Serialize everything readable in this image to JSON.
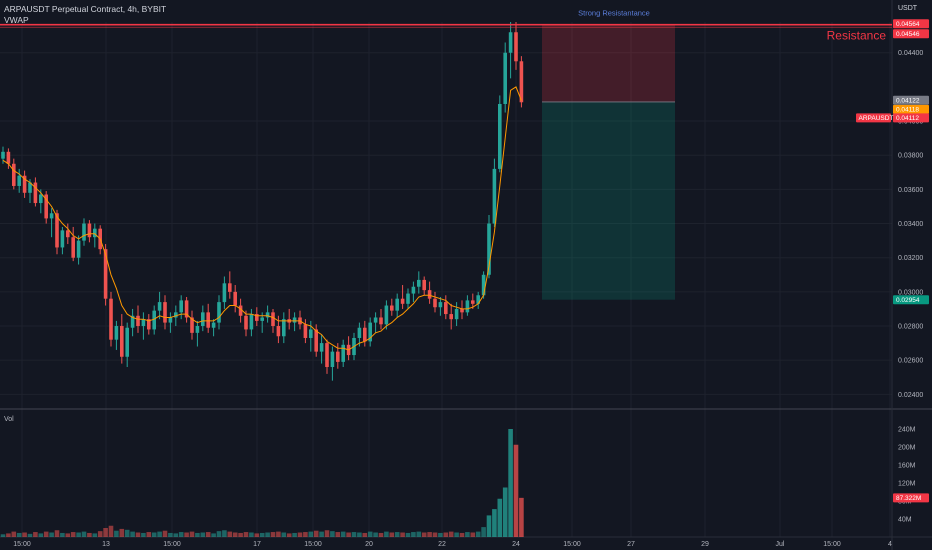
{
  "header": {
    "symbol_line": "ARPAUSDT Perpetual Contract, 4h, BYBIT",
    "indicator": "VWAP"
  },
  "colors": {
    "background": "#131722",
    "up": "#26a69a",
    "down": "#ef5350",
    "vwap": "#ff9800",
    "resistance": "#f23645",
    "grid": "#1e222d",
    "text": "#b2b5be"
  },
  "chart_data": {
    "type": "candlestick",
    "title": "ARPAUSDT Perpetual Contract, 4h, BYBIT",
    "indicator": "VWAP",
    "price_axis": {
      "unit": "USDT",
      "ticks": [
        "0.04400",
        "0.04000",
        "0.03800",
        "0.03600",
        "0.03400",
        "0.03200",
        "0.03000",
        "0.02800",
        "0.02600",
        "0.02400"
      ],
      "range": [
        0.0232,
        0.0458
      ]
    },
    "time_axis": {
      "ticks": [
        "15:00",
        "13",
        "15:00",
        "17",
        "15:00",
        "20",
        "22",
        "24",
        "15:00",
        "27",
        "29",
        "Jul",
        "15:00",
        "4"
      ]
    },
    "price_labels": [
      {
        "text": "0.04564",
        "value": 0.04564,
        "color": "#f23645"
      },
      {
        "text": "0.04546",
        "value": 0.04546,
        "color": "#f23645"
      },
      {
        "text": "0.04122",
        "value": 0.04122,
        "color": "#787b86"
      },
      {
        "text": "0.04118",
        "value": 0.04118,
        "color": "#ff9800"
      },
      {
        "text": "0.04112",
        "value": 0.04112,
        "color": "#f23645"
      },
      {
        "text": "0.02954",
        "value": 0.02954,
        "color": "#089981"
      }
    ],
    "symbol_tag": "ARPAUSDT",
    "resistance": {
      "label": "Resistance",
      "value": 0.04564
    },
    "annotation": "Strong Resistantance",
    "position": {
      "entry": 0.04112,
      "stop": 0.0456,
      "target": 0.02954
    },
    "volume": {
      "label": "Vol",
      "ticks": [
        "240M",
        "200M",
        "160M",
        "120M",
        "80M",
        "40M"
      ],
      "range": [
        0,
        260
      ],
      "last_label": "87.322M"
    },
    "candles": [
      [
        0.0378,
        0.0385,
        0.0375,
        0.0382,
        6
      ],
      [
        0.0382,
        0.0384,
        0.0372,
        0.0375,
        8
      ],
      [
        0.0375,
        0.0378,
        0.036,
        0.0362,
        12
      ],
      [
        0.0362,
        0.0372,
        0.0358,
        0.0368,
        9
      ],
      [
        0.0368,
        0.0371,
        0.0355,
        0.0358,
        10
      ],
      [
        0.0358,
        0.0366,
        0.0352,
        0.0364,
        7
      ],
      [
        0.0364,
        0.0367,
        0.035,
        0.0352,
        11
      ],
      [
        0.0352,
        0.036,
        0.0346,
        0.0357,
        8
      ],
      [
        0.0357,
        0.0359,
        0.034,
        0.0343,
        12
      ],
      [
        0.0343,
        0.0349,
        0.0332,
        0.0346,
        10
      ],
      [
        0.0346,
        0.0348,
        0.0322,
        0.0326,
        15
      ],
      [
        0.0326,
        0.0338,
        0.0322,
        0.0336,
        9
      ],
      [
        0.0336,
        0.034,
        0.0328,
        0.0332,
        8
      ],
      [
        0.0332,
        0.0338,
        0.0318,
        0.032,
        11
      ],
      [
        0.032,
        0.0333,
        0.0316,
        0.033,
        10
      ],
      [
        0.033,
        0.0343,
        0.0327,
        0.034,
        12
      ],
      [
        0.034,
        0.0342,
        0.0329,
        0.0332,
        9
      ],
      [
        0.0332,
        0.034,
        0.0326,
        0.0337,
        8
      ],
      [
        0.0337,
        0.0339,
        0.0322,
        0.0325,
        13
      ],
      [
        0.0325,
        0.0328,
        0.0292,
        0.0296,
        20
      ],
      [
        0.0296,
        0.03,
        0.0268,
        0.0272,
        25
      ],
      [
        0.0272,
        0.0283,
        0.0266,
        0.028,
        14
      ],
      [
        0.028,
        0.0287,
        0.0258,
        0.0262,
        18
      ],
      [
        0.0262,
        0.0282,
        0.0256,
        0.0279,
        16
      ],
      [
        0.0279,
        0.029,
        0.0274,
        0.0286,
        12
      ],
      [
        0.0286,
        0.0292,
        0.0276,
        0.028,
        10
      ],
      [
        0.028,
        0.0288,
        0.0272,
        0.0284,
        9
      ],
      [
        0.0284,
        0.0287,
        0.0275,
        0.0278,
        11
      ],
      [
        0.0278,
        0.0292,
        0.0275,
        0.0289,
        10
      ],
      [
        0.0289,
        0.03,
        0.0284,
        0.0294,
        12
      ],
      [
        0.0294,
        0.0298,
        0.0278,
        0.0282,
        14
      ],
      [
        0.0282,
        0.0288,
        0.0276,
        0.0285,
        9
      ],
      [
        0.0285,
        0.0292,
        0.028,
        0.0288,
        8
      ],
      [
        0.0288,
        0.0298,
        0.0284,
        0.0295,
        11
      ],
      [
        0.0295,
        0.0297,
        0.0282,
        0.0285,
        10
      ],
      [
        0.0285,
        0.0289,
        0.0272,
        0.0276,
        12
      ],
      [
        0.0276,
        0.0283,
        0.0268,
        0.028,
        9
      ],
      [
        0.028,
        0.0292,
        0.0277,
        0.0288,
        10
      ],
      [
        0.0288,
        0.0293,
        0.0276,
        0.0279,
        11
      ],
      [
        0.0279,
        0.0284,
        0.0274,
        0.0282,
        8
      ],
      [
        0.0282,
        0.0298,
        0.0278,
        0.0294,
        13
      ],
      [
        0.0294,
        0.0309,
        0.029,
        0.0305,
        15
      ],
      [
        0.0305,
        0.0312,
        0.0296,
        0.03,
        12
      ],
      [
        0.03,
        0.0304,
        0.0288,
        0.0292,
        10
      ],
      [
        0.0292,
        0.0296,
        0.0282,
        0.0286,
        9
      ],
      [
        0.0286,
        0.0289,
        0.0274,
        0.0278,
        11
      ],
      [
        0.0278,
        0.029,
        0.0274,
        0.0287,
        10
      ],
      [
        0.0287,
        0.0291,
        0.028,
        0.0283,
        8
      ],
      [
        0.0283,
        0.0288,
        0.0276,
        0.0285,
        9
      ],
      [
        0.0285,
        0.0292,
        0.0282,
        0.0288,
        10
      ],
      [
        0.0288,
        0.029,
        0.0276,
        0.028,
        11
      ],
      [
        0.028,
        0.0286,
        0.027,
        0.0274,
        12
      ],
      [
        0.0274,
        0.0288,
        0.027,
        0.0284,
        10
      ],
      [
        0.0284,
        0.029,
        0.0278,
        0.0282,
        8
      ],
      [
        0.0282,
        0.0288,
        0.0277,
        0.0285,
        9
      ],
      [
        0.0285,
        0.0289,
        0.0278,
        0.0281,
        10
      ],
      [
        0.0281,
        0.0284,
        0.027,
        0.0273,
        11
      ],
      [
        0.0273,
        0.0283,
        0.0265,
        0.0278,
        12
      ],
      [
        0.0278,
        0.0281,
        0.0262,
        0.0265,
        14
      ],
      [
        0.0265,
        0.0275,
        0.0258,
        0.027,
        12
      ],
      [
        0.027,
        0.0272,
        0.0252,
        0.0256,
        15
      ],
      [
        0.0256,
        0.0268,
        0.0248,
        0.0265,
        13
      ],
      [
        0.0265,
        0.027,
        0.0255,
        0.0259,
        11
      ],
      [
        0.0259,
        0.0272,
        0.0256,
        0.0269,
        12
      ],
      [
        0.0269,
        0.0274,
        0.026,
        0.0263,
        10
      ],
      [
        0.0263,
        0.0276,
        0.026,
        0.0273,
        11
      ],
      [
        0.0273,
        0.0282,
        0.0268,
        0.0279,
        10
      ],
      [
        0.0279,
        0.0283,
        0.0268,
        0.0271,
        9
      ],
      [
        0.0271,
        0.0285,
        0.0268,
        0.0282,
        12
      ],
      [
        0.0282,
        0.0288,
        0.0276,
        0.0285,
        10
      ],
      [
        0.0285,
        0.029,
        0.0278,
        0.0281,
        9
      ],
      [
        0.0281,
        0.0295,
        0.0278,
        0.0292,
        12
      ],
      [
        0.0292,
        0.0296,
        0.0286,
        0.0289,
        10
      ],
      [
        0.0289,
        0.0299,
        0.0285,
        0.0296,
        11
      ],
      [
        0.0296,
        0.0304,
        0.029,
        0.0293,
        10
      ],
      [
        0.0293,
        0.0302,
        0.029,
        0.0299,
        9
      ],
      [
        0.0299,
        0.0306,
        0.0294,
        0.0303,
        11
      ],
      [
        0.0303,
        0.0312,
        0.0299,
        0.0307,
        12
      ],
      [
        0.0307,
        0.0309,
        0.0298,
        0.0301,
        10
      ],
      [
        0.0301,
        0.0306,
        0.0293,
        0.0296,
        11
      ],
      [
        0.0296,
        0.03,
        0.0288,
        0.0291,
        10
      ],
      [
        0.0291,
        0.0297,
        0.0286,
        0.0294,
        9
      ],
      [
        0.0294,
        0.0298,
        0.0284,
        0.0287,
        10
      ],
      [
        0.0287,
        0.0293,
        0.0278,
        0.0284,
        12
      ],
      [
        0.0284,
        0.0294,
        0.028,
        0.029,
        10
      ],
      [
        0.029,
        0.0295,
        0.0284,
        0.0288,
        9
      ],
      [
        0.0288,
        0.0298,
        0.0286,
        0.0295,
        11
      ],
      [
        0.0295,
        0.0299,
        0.029,
        0.0293,
        10
      ],
      [
        0.0293,
        0.03,
        0.029,
        0.0298,
        12
      ],
      [
        0.0298,
        0.0312,
        0.0296,
        0.031,
        22
      ],
      [
        0.031,
        0.0345,
        0.0308,
        0.034,
        48
      ],
      [
        0.034,
        0.0378,
        0.0338,
        0.0372,
        62
      ],
      [
        0.0372,
        0.0415,
        0.037,
        0.041,
        85
      ],
      [
        0.041,
        0.0446,
        0.0405,
        0.044,
        110
      ],
      [
        0.044,
        0.0458,
        0.0425,
        0.0452,
        240
      ],
      [
        0.0452,
        0.0458,
        0.043,
        0.0435,
        205
      ],
      [
        0.0435,
        0.0438,
        0.0408,
        0.0411,
        87
      ]
    ],
    "vwap": [
      0.0377,
      0.0375,
      0.0371,
      0.0369,
      0.0366,
      0.0364,
      0.0361,
      0.0358,
      0.0354,
      0.035,
      0.0344,
      0.034,
      0.0337,
      0.0333,
      0.0331,
      0.0333,
      0.0334,
      0.0334,
      0.0331,
      0.0322,
      0.031,
      0.0302,
      0.0292,
      0.0287,
      0.0285,
      0.0284,
      0.0284,
      0.0283,
      0.0284,
      0.0286,
      0.0285,
      0.0285,
      0.0286,
      0.0287,
      0.0287,
      0.0284,
      0.0282,
      0.0283,
      0.0283,
      0.0283,
      0.0285,
      0.0289,
      0.0292,
      0.0292,
      0.029,
      0.0287,
      0.0287,
      0.0286,
      0.0286,
      0.0286,
      0.0285,
      0.0283,
      0.0283,
      0.0283,
      0.0283,
      0.0283,
      0.0281,
      0.028,
      0.0277,
      0.0275,
      0.0271,
      0.0269,
      0.0267,
      0.0267,
      0.0266,
      0.0268,
      0.027,
      0.0271,
      0.0273,
      0.0276,
      0.0277,
      0.028,
      0.0282,
      0.0285,
      0.0287,
      0.029,
      0.0293,
      0.0297,
      0.0298,
      0.0298,
      0.0297,
      0.0296,
      0.0295,
      0.0292,
      0.0291,
      0.029,
      0.029,
      0.0291,
      0.0293,
      0.0298,
      0.0315,
      0.0335,
      0.0362,
      0.039,
      0.0418,
      0.042,
      0.0412
    ]
  }
}
